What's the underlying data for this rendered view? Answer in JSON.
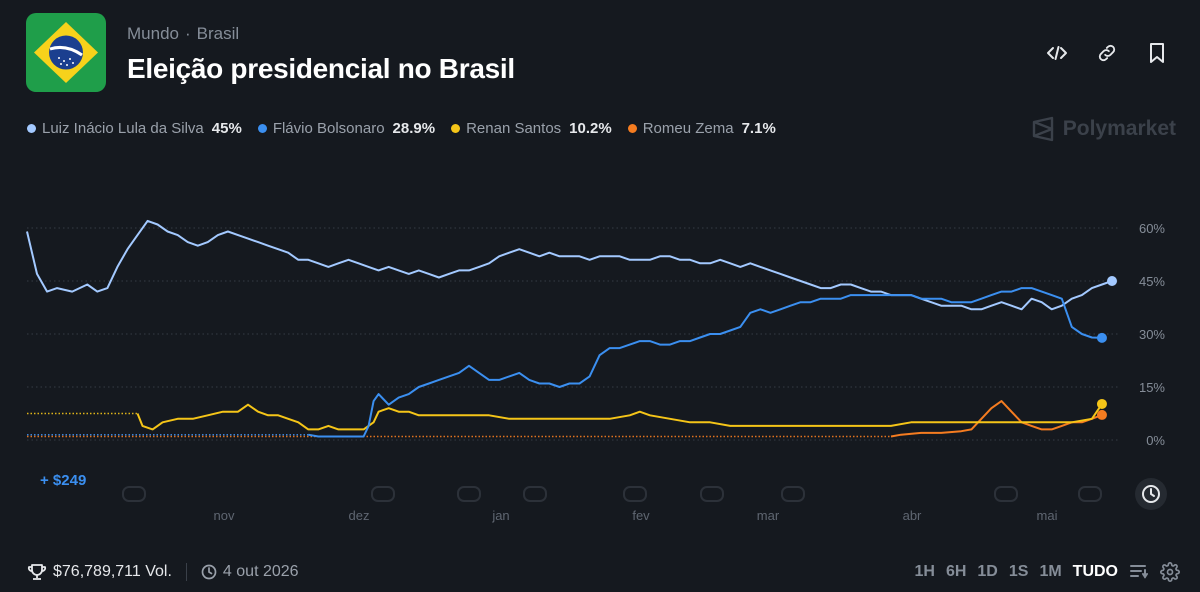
{
  "header": {
    "breadcrumb": [
      "Mundo",
      "Brasil"
    ],
    "title": "Eleição presidencial no Brasil"
  },
  "brand": "Polymarket",
  "legend": [
    {
      "name": "Luiz Inácio Lula da Silva",
      "value": "45%",
      "color": "#a3c9ff"
    },
    {
      "name": "Flávio Bolsonaro",
      "value": "28.9%",
      "color": "#3b8ff0"
    },
    {
      "name": "Renan Santos",
      "value": "10.2%",
      "color": "#f5c518"
    },
    {
      "name": "Romeu Zema",
      "value": "7.1%",
      "color": "#f57c20"
    }
  ],
  "trade_gain": "+ $249",
  "footer": {
    "volume": "$76,789,711 Vol.",
    "date": "4 out 2026",
    "ranges": [
      "1H",
      "6H",
      "1D",
      "1S",
      "1M",
      "TUDO"
    ],
    "active_range": "TUDO"
  },
  "chart_data": {
    "type": "line",
    "x_axis_labels": [
      "nov",
      "dez",
      "jan",
      "fev",
      "mar",
      "abr",
      "mai"
    ],
    "y_tick_labels": [
      "60%",
      "45%",
      "30%",
      "15%",
      "0%"
    ],
    "ylim": [
      0,
      60
    ],
    "y_unit": "%",
    "grid": true,
    "series": [
      {
        "name": "Luiz Inácio Lula da Silva",
        "color": "#a3c9ff",
        "final": 45,
        "points": [
          [
            0,
            59
          ],
          [
            2,
            47
          ],
          [
            4,
            42
          ],
          [
            6,
            43
          ],
          [
            9,
            42
          ],
          [
            12,
            44
          ],
          [
            14,
            42
          ],
          [
            16,
            43
          ],
          [
            18,
            49
          ],
          [
            20,
            54
          ],
          [
            22,
            58
          ],
          [
            24,
            62
          ],
          [
            26,
            61
          ],
          [
            28,
            59
          ],
          [
            30,
            58
          ],
          [
            32,
            56
          ],
          [
            34,
            55
          ],
          [
            36,
            56
          ],
          [
            38,
            58
          ],
          [
            40,
            59
          ],
          [
            42,
            58
          ],
          [
            44,
            57
          ],
          [
            46,
            56
          ],
          [
            48,
            55
          ],
          [
            50,
            54
          ],
          [
            52,
            53
          ],
          [
            54,
            51
          ],
          [
            56,
            51
          ],
          [
            58,
            50
          ],
          [
            60,
            49
          ],
          [
            62,
            50
          ],
          [
            64,
            51
          ],
          [
            66,
            50
          ],
          [
            68,
            49
          ],
          [
            70,
            48
          ],
          [
            72,
            49
          ],
          [
            74,
            48
          ],
          [
            76,
            47
          ],
          [
            78,
            48
          ],
          [
            80,
            47
          ],
          [
            82,
            46
          ],
          [
            84,
            47
          ],
          [
            86,
            48
          ],
          [
            88,
            48
          ],
          [
            90,
            49
          ],
          [
            92,
            50
          ],
          [
            94,
            52
          ],
          [
            96,
            53
          ],
          [
            98,
            54
          ],
          [
            100,
            53
          ],
          [
            102,
            52
          ],
          [
            104,
            53
          ],
          [
            106,
            52
          ],
          [
            108,
            52
          ],
          [
            110,
            52
          ],
          [
            112,
            51
          ],
          [
            114,
            52
          ],
          [
            116,
            52
          ],
          [
            118,
            52
          ],
          [
            120,
            51
          ],
          [
            122,
            51
          ],
          [
            124,
            51
          ],
          [
            126,
            52
          ],
          [
            128,
            52
          ],
          [
            130,
            51
          ],
          [
            132,
            51
          ],
          [
            134,
            50
          ],
          [
            136,
            50
          ],
          [
            138,
            51
          ],
          [
            140,
            50
          ],
          [
            142,
            49
          ],
          [
            144,
            50
          ],
          [
            146,
            49
          ],
          [
            148,
            48
          ],
          [
            150,
            47
          ],
          [
            152,
            46
          ],
          [
            154,
            45
          ],
          [
            156,
            44
          ],
          [
            158,
            43
          ],
          [
            160,
            43
          ],
          [
            162,
            44
          ],
          [
            164,
            44
          ],
          [
            166,
            43
          ],
          [
            168,
            42
          ],
          [
            170,
            42
          ],
          [
            172,
            41
          ],
          [
            174,
            41
          ],
          [
            176,
            41
          ],
          [
            178,
            40
          ],
          [
            180,
            39
          ],
          [
            182,
            38
          ],
          [
            184,
            38
          ],
          [
            186,
            38
          ],
          [
            188,
            37
          ],
          [
            190,
            37
          ],
          [
            192,
            38
          ],
          [
            194,
            39
          ],
          [
            196,
            38
          ],
          [
            198,
            37
          ],
          [
            200,
            40
          ],
          [
            202,
            39
          ],
          [
            204,
            37
          ],
          [
            206,
            38
          ],
          [
            208,
            40
          ],
          [
            210,
            41
          ],
          [
            212,
            43
          ],
          [
            214,
            44
          ],
          [
            216,
            45
          ]
        ]
      },
      {
        "name": "Flávio Bolsonaro",
        "color": "#3b8ff0",
        "final": 28.9,
        "points": [
          [
            0,
            1.5
          ],
          [
            56,
            1.5
          ],
          [
            58,
            1
          ],
          [
            62,
            1
          ],
          [
            67,
            1
          ],
          [
            68,
            4
          ],
          [
            69,
            11
          ],
          [
            70,
            13
          ],
          [
            72,
            10
          ],
          [
            74,
            12
          ],
          [
            76,
            13
          ],
          [
            78,
            15
          ],
          [
            80,
            16
          ],
          [
            82,
            17
          ],
          [
            84,
            18
          ],
          [
            86,
            19
          ],
          [
            88,
            21
          ],
          [
            90,
            19
          ],
          [
            92,
            17
          ],
          [
            94,
            17
          ],
          [
            96,
            18
          ],
          [
            98,
            19
          ],
          [
            100,
            17
          ],
          [
            102,
            16
          ],
          [
            104,
            16
          ],
          [
            106,
            15
          ],
          [
            108,
            16
          ],
          [
            110,
            16
          ],
          [
            112,
            18
          ],
          [
            114,
            24
          ],
          [
            116,
            26
          ],
          [
            118,
            26
          ],
          [
            120,
            27
          ],
          [
            122,
            28
          ],
          [
            124,
            28
          ],
          [
            126,
            27
          ],
          [
            128,
            27
          ],
          [
            130,
            28
          ],
          [
            132,
            28
          ],
          [
            134,
            29
          ],
          [
            136,
            30
          ],
          [
            138,
            30
          ],
          [
            140,
            31
          ],
          [
            142,
            32
          ],
          [
            144,
            36
          ],
          [
            146,
            37
          ],
          [
            148,
            36
          ],
          [
            150,
            37
          ],
          [
            152,
            38
          ],
          [
            154,
            39
          ],
          [
            156,
            39
          ],
          [
            158,
            40
          ],
          [
            160,
            40
          ],
          [
            162,
            40
          ],
          [
            164,
            41
          ],
          [
            166,
            41
          ],
          [
            168,
            41
          ],
          [
            170,
            41
          ],
          [
            172,
            41
          ],
          [
            174,
            41
          ],
          [
            176,
            41
          ],
          [
            178,
            40
          ],
          [
            180,
            40
          ],
          [
            182,
            40
          ],
          [
            184,
            39
          ],
          [
            186,
            39
          ],
          [
            188,
            39
          ],
          [
            190,
            40
          ],
          [
            192,
            41
          ],
          [
            194,
            42
          ],
          [
            196,
            42
          ],
          [
            198,
            43
          ],
          [
            200,
            43
          ],
          [
            202,
            42
          ],
          [
            204,
            41
          ],
          [
            206,
            40
          ],
          [
            208,
            32
          ],
          [
            210,
            30
          ],
          [
            212,
            29
          ],
          [
            214,
            28.9
          ]
        ]
      },
      {
        "name": "Renan Santos",
        "color": "#f5c518",
        "final": 10.2,
        "points": [
          [
            0,
            7.5
          ],
          [
            22,
            7.5
          ],
          [
            23,
            4
          ],
          [
            25,
            3
          ],
          [
            27,
            5
          ],
          [
            30,
            6
          ],
          [
            33,
            6
          ],
          [
            36,
            7
          ],
          [
            39,
            8
          ],
          [
            42,
            8
          ],
          [
            44,
            10
          ],
          [
            46,
            8
          ],
          [
            48,
            7
          ],
          [
            50,
            7
          ],
          [
            52,
            6
          ],
          [
            54,
            5
          ],
          [
            56,
            3
          ],
          [
            58,
            3
          ],
          [
            60,
            4
          ],
          [
            62,
            3
          ],
          [
            65,
            3
          ],
          [
            67,
            3
          ],
          [
            69,
            5
          ],
          [
            70,
            8
          ],
          [
            72,
            9
          ],
          [
            74,
            8
          ],
          [
            76,
            8
          ],
          [
            78,
            7
          ],
          [
            80,
            7
          ],
          [
            84,
            7
          ],
          [
            88,
            7
          ],
          [
            92,
            7
          ],
          [
            96,
            6
          ],
          [
            100,
            6
          ],
          [
            104,
            6
          ],
          [
            108,
            6
          ],
          [
            112,
            6
          ],
          [
            116,
            6
          ],
          [
            120,
            7
          ],
          [
            122,
            8
          ],
          [
            124,
            7
          ],
          [
            128,
            6
          ],
          [
            132,
            5
          ],
          [
            136,
            5
          ],
          [
            140,
            4
          ],
          [
            144,
            4
          ],
          [
            148,
            4
          ],
          [
            152,
            4
          ],
          [
            156,
            4
          ],
          [
            160,
            4
          ],
          [
            164,
            4
          ],
          [
            168,
            4
          ],
          [
            172,
            4
          ],
          [
            176,
            5
          ],
          [
            180,
            5
          ],
          [
            184,
            5
          ],
          [
            188,
            5
          ],
          [
            192,
            5
          ],
          [
            196,
            5
          ],
          [
            200,
            5
          ],
          [
            204,
            5
          ],
          [
            208,
            5
          ],
          [
            212,
            6
          ],
          [
            214,
            10.2
          ]
        ]
      },
      {
        "name": "Romeu Zema",
        "color": "#f57c20",
        "final": 7.1,
        "points": [
          [
            0,
            1
          ],
          [
            172,
            1
          ],
          [
            174,
            1.5
          ],
          [
            178,
            2
          ],
          [
            182,
            2
          ],
          [
            186,
            2.5
          ],
          [
            188,
            3
          ],
          [
            190,
            6
          ],
          [
            192,
            9
          ],
          [
            194,
            11
          ],
          [
            196,
            8
          ],
          [
            198,
            5
          ],
          [
            200,
            4
          ],
          [
            202,
            3
          ],
          [
            204,
            3
          ],
          [
            206,
            4
          ],
          [
            208,
            5
          ],
          [
            210,
            5
          ],
          [
            212,
            6
          ],
          [
            214,
            7.1
          ]
        ]
      }
    ]
  }
}
